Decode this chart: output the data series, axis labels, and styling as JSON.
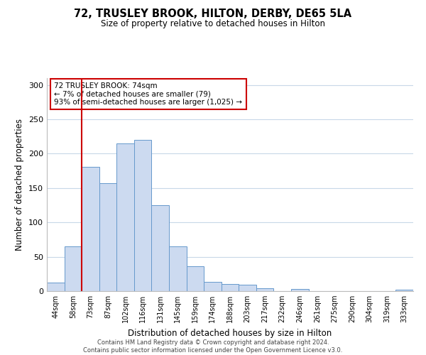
{
  "title": "72, TRUSLEY BROOK, HILTON, DERBY, DE65 5LA",
  "subtitle": "Size of property relative to detached houses in Hilton",
  "xlabel": "Distribution of detached houses by size in Hilton",
  "ylabel": "Number of detached properties",
  "bin_labels": [
    "44sqm",
    "58sqm",
    "73sqm",
    "87sqm",
    "102sqm",
    "116sqm",
    "131sqm",
    "145sqm",
    "159sqm",
    "174sqm",
    "188sqm",
    "203sqm",
    "217sqm",
    "232sqm",
    "246sqm",
    "261sqm",
    "275sqm",
    "290sqm",
    "304sqm",
    "319sqm",
    "333sqm"
  ],
  "bar_heights": [
    12,
    65,
    181,
    157,
    215,
    220,
    125,
    65,
    36,
    13,
    10,
    9,
    4,
    0,
    3,
    0,
    0,
    0,
    0,
    0,
    2
  ],
  "bar_color": "#ccdaf0",
  "bar_edge_color": "#6699cc",
  "highlight_line_color": "#cc0000",
  "annotation_title": "72 TRUSLEY BROOK: 74sqm",
  "annotation_line1": "← 7% of detached houses are smaller (79)",
  "annotation_line2": "93% of semi-detached houses are larger (1,025) →",
  "annotation_box_edge": "#cc0000",
  "ylim": [
    0,
    310
  ],
  "yticks": [
    0,
    50,
    100,
    150,
    200,
    250,
    300
  ],
  "grid_color": "#c8d8e8",
  "footer_line1": "Contains HM Land Registry data © Crown copyright and database right 2024.",
  "footer_line2": "Contains public sector information licensed under the Open Government Licence v3.0."
}
